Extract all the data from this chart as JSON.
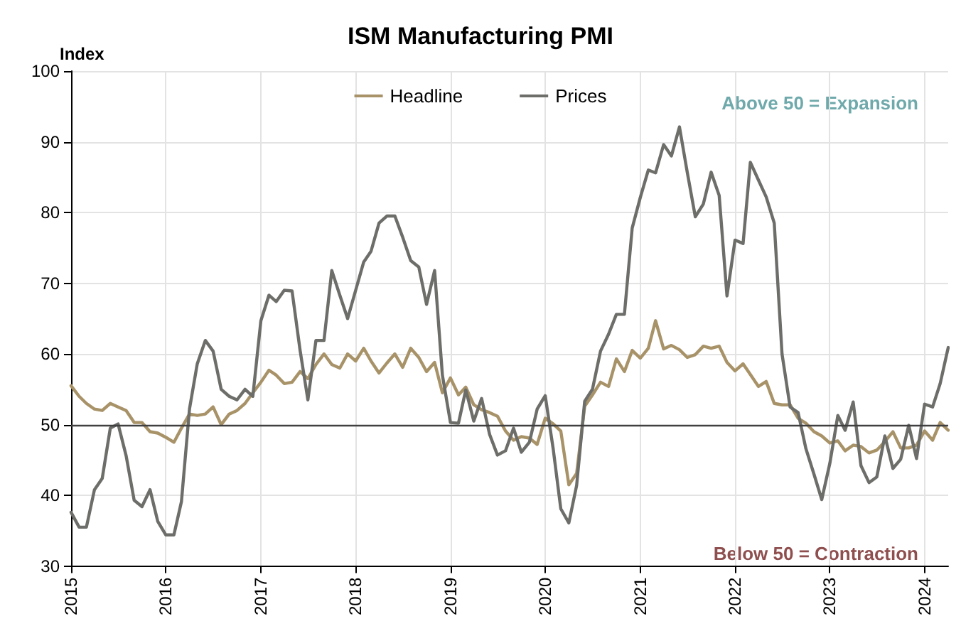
{
  "chart_data": {
    "type": "line",
    "title": "ISM Manufacturing PMI",
    "ylabel": "Index",
    "x": [
      "2015-01",
      "2015-02",
      "2015-03",
      "2015-04",
      "2015-05",
      "2015-06",
      "2015-07",
      "2015-08",
      "2015-09",
      "2015-10",
      "2015-11",
      "2015-12",
      "2016-01",
      "2016-02",
      "2016-03",
      "2016-04",
      "2016-05",
      "2016-06",
      "2016-07",
      "2016-08",
      "2016-09",
      "2016-10",
      "2016-11",
      "2016-12",
      "2017-01",
      "2017-02",
      "2017-03",
      "2017-04",
      "2017-05",
      "2017-06",
      "2017-07",
      "2017-08",
      "2017-09",
      "2017-10",
      "2017-11",
      "2017-12",
      "2018-01",
      "2018-02",
      "2018-03",
      "2018-04",
      "2018-05",
      "2018-06",
      "2018-07",
      "2018-08",
      "2018-09",
      "2018-10",
      "2018-11",
      "2018-12",
      "2019-01",
      "2019-02",
      "2019-03",
      "2019-04",
      "2019-05",
      "2019-06",
      "2019-07",
      "2019-08",
      "2019-09",
      "2019-10",
      "2019-11",
      "2019-12",
      "2020-01",
      "2020-02",
      "2020-03",
      "2020-04",
      "2020-05",
      "2020-06",
      "2020-07",
      "2020-08",
      "2020-09",
      "2020-10",
      "2020-11",
      "2020-12",
      "2021-01",
      "2021-02",
      "2021-03",
      "2021-04",
      "2021-05",
      "2021-06",
      "2021-07",
      "2021-08",
      "2021-09",
      "2021-10",
      "2021-11",
      "2021-12",
      "2022-01",
      "2022-02",
      "2022-03",
      "2022-04",
      "2022-05",
      "2022-06",
      "2022-07",
      "2022-08",
      "2022-09",
      "2022-10",
      "2022-11",
      "2022-12",
      "2023-01",
      "2023-02",
      "2023-03",
      "2023-04",
      "2023-05",
      "2023-06",
      "2023-07",
      "2023-08",
      "2023-09",
      "2023-10",
      "2023-11",
      "2023-12",
      "2024-01",
      "2024-02",
      "2024-03",
      "2024-04"
    ],
    "series": [
      {
        "name": "Headline",
        "color": "#a89268",
        "values": [
          55.5,
          54,
          53,
          52.2,
          52,
          53,
          52.5,
          52,
          50.3,
          50.3,
          49,
          48.8,
          48.2,
          47.5,
          49.5,
          51.5,
          51.3,
          51.5,
          52.5,
          50,
          51.5,
          52,
          53,
          54.5,
          56,
          57.7,
          57,
          55.8,
          56,
          57.5,
          56.5,
          58.5,
          60,
          58.5,
          58,
          60,
          59,
          60.8,
          59,
          57.3,
          58.7,
          60,
          58.1,
          60.8,
          59.5,
          57.5,
          58.8,
          54.5,
          56.6,
          54.2,
          55.3,
          52.8,
          52.1,
          51.7,
          51.2,
          49.1,
          47.8,
          48.3,
          48.1,
          47.2,
          50.9,
          50.1,
          49.1,
          41.5,
          43.1,
          52.6,
          54.2,
          56,
          55.4,
          59.3,
          57.5,
          60.5,
          59.4,
          60.8,
          64.7,
          60.7,
          61.2,
          60.6,
          59.5,
          59.9,
          61.1,
          60.8,
          61.1,
          58.8,
          57.6,
          58.6,
          57.1,
          55.4,
          56.1,
          53,
          52.8,
          52.8,
          50.9,
          50.2,
          49,
          48.4,
          47.4,
          47.7,
          46.3,
          47.1,
          46.9,
          46,
          46.4,
          47.6,
          49,
          46.7,
          46.7,
          47.1,
          49.1,
          47.8,
          50.3,
          49.2
        ]
      },
      {
        "name": "Prices",
        "color": "#6d6e6a",
        "values": [
          37.6,
          35.5,
          35.5,
          40.8,
          42.4,
          49.5,
          50.1,
          45.6,
          39.3,
          38.4,
          40.8,
          36.3,
          34.4,
          34.4,
          39.1,
          52.2,
          58.6,
          61.9,
          60.4,
          55,
          54,
          53.5,
          55,
          54,
          64.7,
          68.3,
          67.4,
          69,
          68.9,
          60.5,
          53.5,
          61.9,
          61.9,
          71.8,
          68.3,
          65,
          69,
          73,
          74.5,
          78.5,
          79.5,
          79.5,
          76.5,
          73.2,
          72.3,
          67,
          71.8,
          57,
          50.3,
          50.2,
          54.9,
          50.5,
          53.7,
          48.6,
          45.7,
          46.3,
          49.5,
          46.1,
          47.5,
          52.2,
          54.1,
          46.5,
          38.1,
          36.1,
          41.4,
          53.3,
          55,
          60.4,
          62.8,
          65.6,
          65.6,
          77.8,
          82.1,
          86,
          85.6,
          89.6,
          88,
          92.1,
          85.7,
          79.4,
          81.2,
          85.7,
          82.4,
          68.2,
          76.1,
          75.6,
          87.1,
          84.6,
          82.2,
          78.5,
          60,
          52.5,
          51.7,
          46.6,
          43,
          39.4,
          44.5,
          51.3,
          49.2,
          53.2,
          44.2,
          41.8,
          42.6,
          48.4,
          43.8,
          45.1,
          49.9,
          45.2,
          52.9,
          52.5,
          55.8,
          60.9
        ]
      }
    ],
    "xlim": [
      "2015-01",
      "2024-04"
    ],
    "xticks": [
      {
        "value": "2015-01",
        "label": "2015"
      },
      {
        "value": "2016-01",
        "label": "2016"
      },
      {
        "value": "2017-01",
        "label": "2017"
      },
      {
        "value": "2018-01",
        "label": "2018"
      },
      {
        "value": "2019-01",
        "label": "2019"
      },
      {
        "value": "2020-01",
        "label": "2020"
      },
      {
        "value": "2021-01",
        "label": "2021"
      },
      {
        "value": "2022-01",
        "label": "2022"
      },
      {
        "value": "2023-01",
        "label": "2023"
      },
      {
        "value": "2024-01",
        "label": "2024"
      }
    ],
    "ylim": [
      30,
      100
    ],
    "yticks": [
      30,
      40,
      50,
      60,
      70,
      80,
      90,
      100
    ],
    "ref_lines": [
      {
        "axis": "y",
        "value": 50,
        "color": "#404040"
      }
    ],
    "annotations": [
      "Above 50 = Expansion",
      "Below 50 = Contraction"
    ],
    "grid": true,
    "legend": "top",
    "line_style": "solid"
  }
}
